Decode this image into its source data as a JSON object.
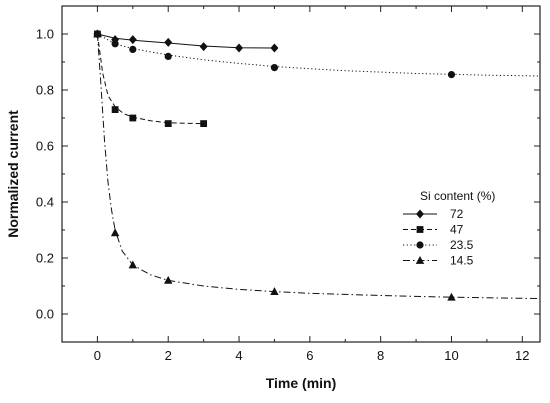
{
  "chart_data": {
    "type": "line",
    "title": "",
    "xlabel": "Time (min)",
    "ylabel": "Normalized current",
    "xlim": [
      -1,
      12.5
    ],
    "ylim": [
      -0.1,
      1.1
    ],
    "x_ticks": [
      0,
      2,
      4,
      6,
      8,
      10,
      12
    ],
    "y_ticks": [
      0.0,
      0.2,
      0.4,
      0.6,
      0.8,
      1.0
    ],
    "x_tick_labels": [
      "0",
      "2",
      "4",
      "6",
      "8",
      "10",
      "12"
    ],
    "y_tick_labels": [
      "0.0",
      "0.2",
      "0.4",
      "0.6",
      "0.8",
      "1.0"
    ],
    "grid": false,
    "legend": {
      "title": "Si content (%)",
      "position": "right-middle"
    },
    "series": [
      {
        "name": "72",
        "marker": "diamond",
        "line_style": "solid",
        "points": [
          [
            0,
            1.0
          ],
          [
            0.5,
            0.98
          ],
          [
            1,
            0.98
          ],
          [
            2,
            0.97
          ],
          [
            3,
            0.955
          ],
          [
            4,
            0.95
          ],
          [
            5,
            0.95
          ]
        ],
        "fit": [
          [
            0,
            1.0
          ],
          [
            0.5,
            0.985
          ],
          [
            1,
            0.978
          ],
          [
            2,
            0.968
          ],
          [
            3,
            0.957
          ],
          [
            4,
            0.951
          ],
          [
            5,
            0.95
          ]
        ]
      },
      {
        "name": "47",
        "marker": "square",
        "line_style": "dashed",
        "points": [
          [
            0,
            1.0
          ],
          [
            0.5,
            0.73
          ],
          [
            1,
            0.7
          ],
          [
            2,
            0.68
          ],
          [
            3,
            0.68
          ]
        ],
        "fit": [
          [
            0,
            1.0
          ],
          [
            0.15,
            0.86
          ],
          [
            0.3,
            0.78
          ],
          [
            0.5,
            0.74
          ],
          [
            0.75,
            0.715
          ],
          [
            1,
            0.703
          ],
          [
            1.5,
            0.69
          ],
          [
            2,
            0.683
          ],
          [
            2.5,
            0.681
          ],
          [
            3,
            0.68
          ]
        ]
      },
      {
        "name": "23.5",
        "marker": "circle",
        "line_style": "dotted",
        "points": [
          [
            0,
            1.0
          ],
          [
            0.5,
            0.965
          ],
          [
            1,
            0.945
          ],
          [
            2,
            0.92
          ],
          [
            5,
            0.88
          ],
          [
            10,
            0.855
          ]
        ],
        "fit": [
          [
            0,
            1.0
          ],
          [
            0.5,
            0.965
          ],
          [
            1,
            0.948
          ],
          [
            2,
            0.925
          ],
          [
            3,
            0.908
          ],
          [
            4,
            0.895
          ],
          [
            5,
            0.884
          ],
          [
            6,
            0.876
          ],
          [
            7,
            0.869
          ],
          [
            8,
            0.864
          ],
          [
            9,
            0.859
          ],
          [
            10,
            0.856
          ],
          [
            11,
            0.853
          ],
          [
            12,
            0.851
          ],
          [
            12.5,
            0.85
          ]
        ]
      },
      {
        "name": "14.5",
        "marker": "triangle",
        "line_style": "dashdot",
        "points": [
          [
            0,
            1.0
          ],
          [
            0.5,
            0.29
          ],
          [
            1,
            0.175
          ],
          [
            2,
            0.12
          ],
          [
            5,
            0.08
          ],
          [
            10,
            0.06
          ]
        ],
        "fit": [
          [
            0,
            1.0
          ],
          [
            0.1,
            0.82
          ],
          [
            0.2,
            0.62
          ],
          [
            0.3,
            0.47
          ],
          [
            0.4,
            0.37
          ],
          [
            0.5,
            0.3
          ],
          [
            0.7,
            0.225
          ],
          [
            1,
            0.175
          ],
          [
            1.5,
            0.14
          ],
          [
            2,
            0.12
          ],
          [
            3,
            0.1
          ],
          [
            4,
            0.088
          ],
          [
            5,
            0.08
          ],
          [
            6,
            0.074
          ],
          [
            7,
            0.07
          ],
          [
            8,
            0.066
          ],
          [
            9,
            0.063
          ],
          [
            10,
            0.06
          ],
          [
            11,
            0.058
          ],
          [
            12,
            0.056
          ],
          [
            12.5,
            0.055
          ]
        ]
      }
    ]
  }
}
